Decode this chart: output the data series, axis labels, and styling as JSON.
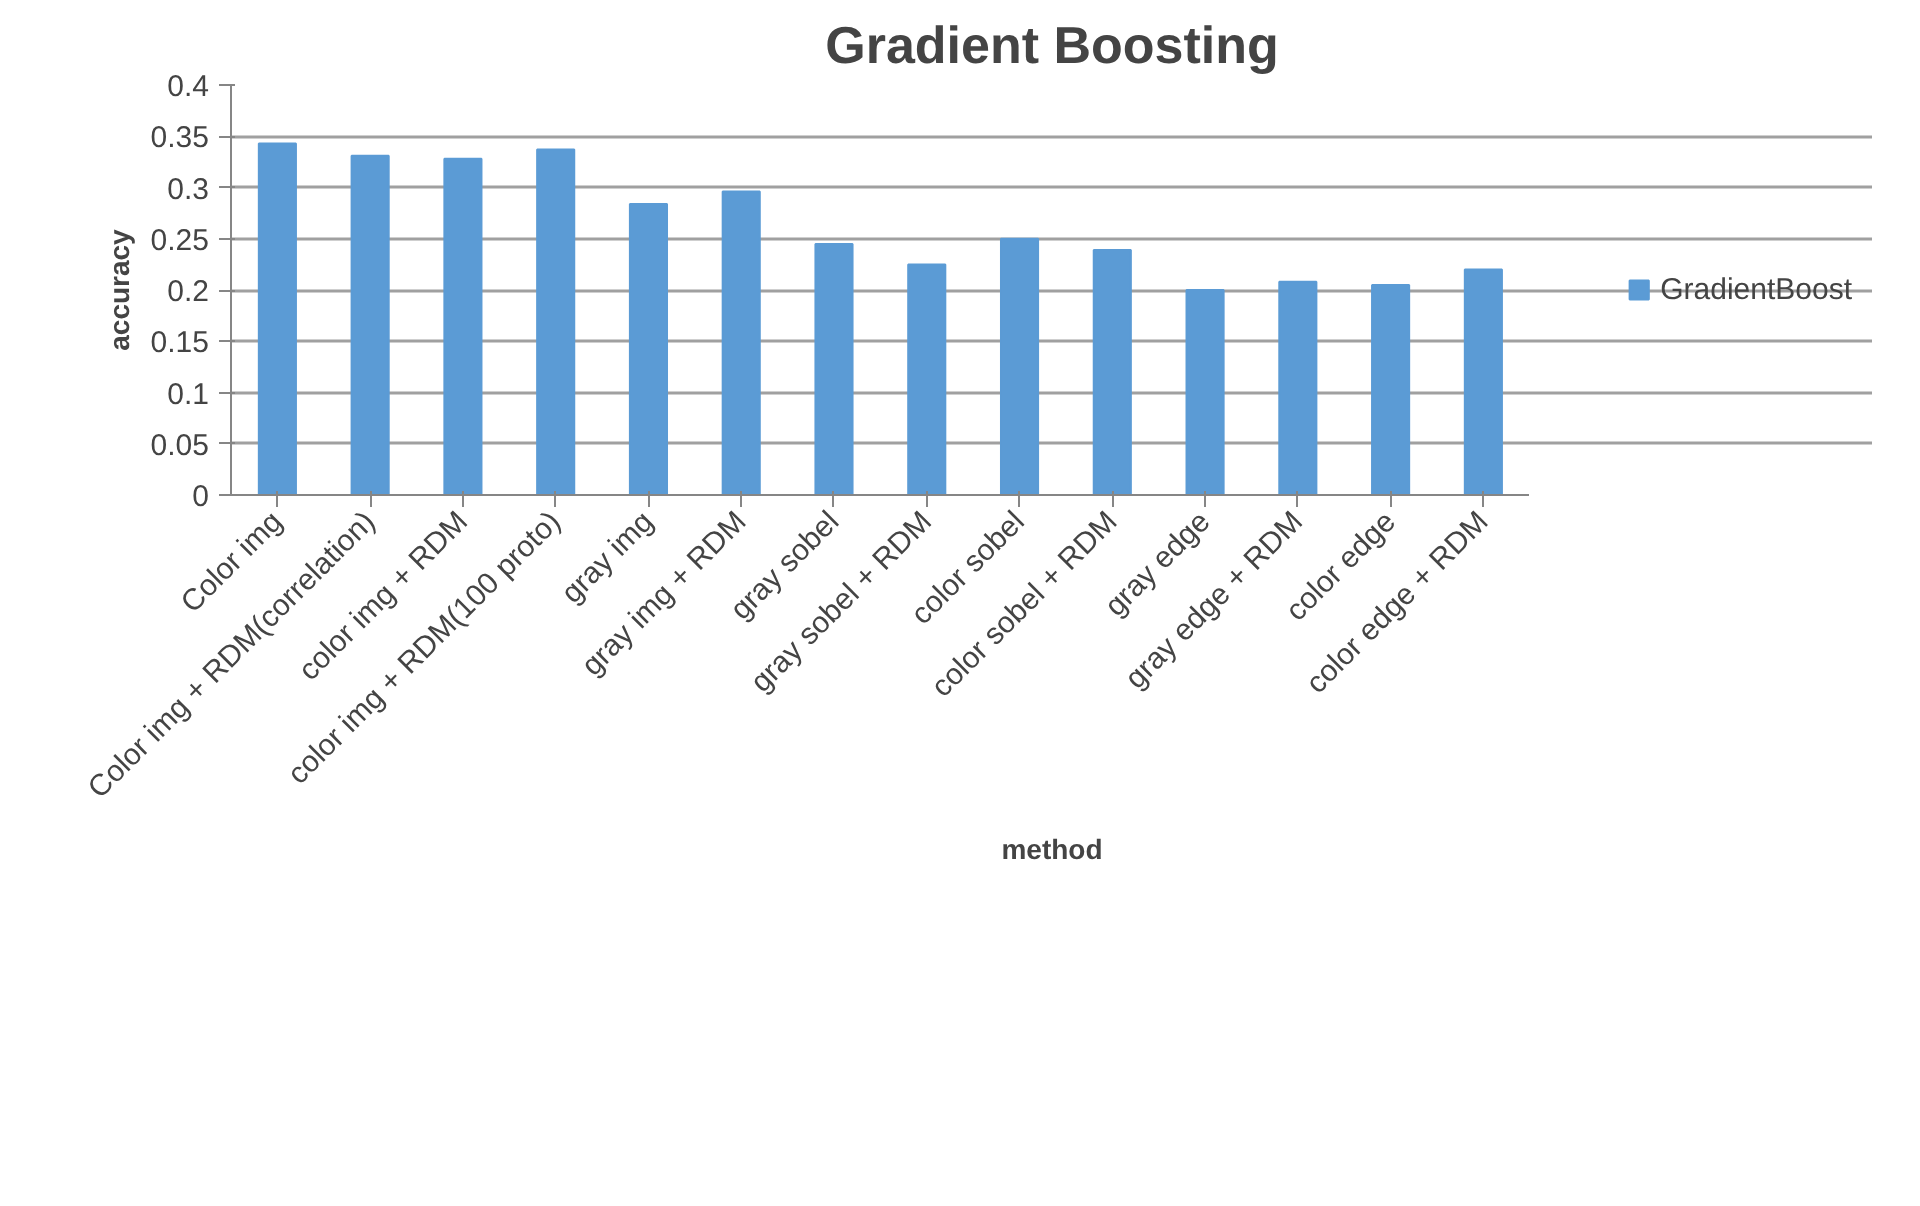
{
  "chart_data": {
    "type": "bar",
    "title": "Gradient Boosting",
    "xlabel": "method",
    "ylabel": "accuracy",
    "categories": [
      "Color img",
      "Color img + RDM(correlation)",
      "color img + RDM",
      "color img + RDM(100 proto)",
      "gray img",
      "gray img + RDM",
      "gray sobel",
      "gray sobel + RDM",
      "color sobel",
      "color sobel + RDM",
      "gray edge",
      "gray edge + RDM",
      "color edge",
      "color edge + RDM"
    ],
    "series": [
      {
        "name": "GradientBoost",
        "color": "#5b9bd5",
        "values": [
          0.343,
          0.331,
          0.328,
          0.337,
          0.284,
          0.296,
          0.245,
          0.225,
          0.25,
          0.239,
          0.2,
          0.208,
          0.205,
          0.22
        ]
      }
    ],
    "ylim": [
      0,
      0.4
    ],
    "yticks": [
      0,
      0.05,
      0.1,
      0.15,
      0.2,
      0.25,
      0.3,
      0.35,
      0.4
    ],
    "grid": "y",
    "legend": "right"
  }
}
